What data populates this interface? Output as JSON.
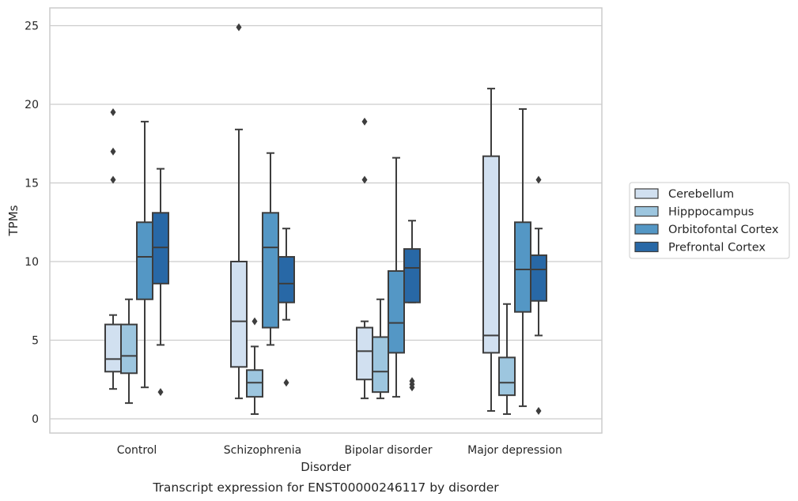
{
  "chart_data": {
    "type": "box",
    "caption": "Transcript expression for ENST00000246117 by disorder",
    "xlabel": "Disorder",
    "ylabel": "TPMs",
    "ylim": [
      -0.8,
      26.1
    ],
    "yticks": [
      0,
      5,
      10,
      15,
      20,
      25
    ],
    "grid": true,
    "legend_position": "right",
    "categories": [
      "Control",
      "Schizophrenia",
      "Bipolar disorder",
      "Major depression"
    ],
    "series": [
      {
        "name": "Cerebellum",
        "color": "#d1e0f0",
        "boxes": [
          {
            "whislo": 1.9,
            "q1": 3.0,
            "med": 3.8,
            "q3": 6.0,
            "whishi": 6.6,
            "fliers": [
              15.2,
              17.0,
              19.5
            ]
          },
          {
            "whislo": 1.3,
            "q1": 3.3,
            "med": 6.2,
            "q3": 10.0,
            "whishi": 18.4,
            "fliers": [
              24.9
            ]
          },
          {
            "whislo": 1.3,
            "q1": 2.5,
            "med": 4.3,
            "q3": 5.8,
            "whishi": 6.2,
            "fliers": [
              15.2,
              18.9
            ]
          },
          {
            "whislo": 0.5,
            "q1": 4.2,
            "med": 5.3,
            "q3": 16.7,
            "whishi": 21.0,
            "fliers": []
          }
        ]
      },
      {
        "name": "Hipppocampus",
        "color": "#9dc6df",
        "boxes": [
          {
            "whislo": 1.0,
            "q1": 2.9,
            "med": 4.0,
            "q3": 6.0,
            "whishi": 7.6,
            "fliers": []
          },
          {
            "whislo": 0.3,
            "q1": 1.4,
            "med": 2.3,
            "q3": 3.1,
            "whishi": 4.6,
            "fliers": [
              6.2
            ]
          },
          {
            "whislo": 1.3,
            "q1": 1.7,
            "med": 3.0,
            "q3": 5.2,
            "whishi": 7.6,
            "fliers": []
          },
          {
            "whislo": 0.3,
            "q1": 1.5,
            "med": 2.3,
            "q3": 3.9,
            "whishi": 7.3,
            "fliers": []
          }
        ]
      },
      {
        "name": "Orbitofontal Cortex",
        "color": "#5497c5",
        "boxes": [
          {
            "whislo": 2.0,
            "q1": 7.6,
            "med": 10.3,
            "q3": 12.5,
            "whishi": 18.9,
            "fliers": []
          },
          {
            "whislo": 4.7,
            "q1": 5.8,
            "med": 10.9,
            "q3": 13.1,
            "whishi": 16.9,
            "fliers": []
          },
          {
            "whislo": 1.4,
            "q1": 4.2,
            "med": 6.1,
            "q3": 9.4,
            "whishi": 16.6,
            "fliers": []
          },
          {
            "whislo": 0.8,
            "q1": 6.8,
            "med": 9.5,
            "q3": 12.5,
            "whishi": 19.7,
            "fliers": []
          }
        ]
      },
      {
        "name": "Prefrontal Cortex",
        "color": "#2868a6",
        "boxes": [
          {
            "whislo": 4.7,
            "q1": 8.6,
            "med": 10.9,
            "q3": 13.1,
            "whishi": 15.9,
            "fliers": [
              1.7
            ]
          },
          {
            "whislo": 6.3,
            "q1": 7.4,
            "med": 8.6,
            "q3": 10.3,
            "whishi": 12.1,
            "fliers": [
              2.3
            ]
          },
          {
            "whislo": 7.4,
            "q1": 7.4,
            "med": 9.6,
            "q3": 10.8,
            "whishi": 12.6,
            "fliers": [
              2.0,
              2.2,
              2.4
            ]
          },
          {
            "whislo": 5.3,
            "q1": 7.5,
            "med": 9.5,
            "q3": 10.4,
            "whishi": 12.1,
            "fliers": [
              0.5,
              15.2
            ]
          }
        ]
      }
    ]
  }
}
